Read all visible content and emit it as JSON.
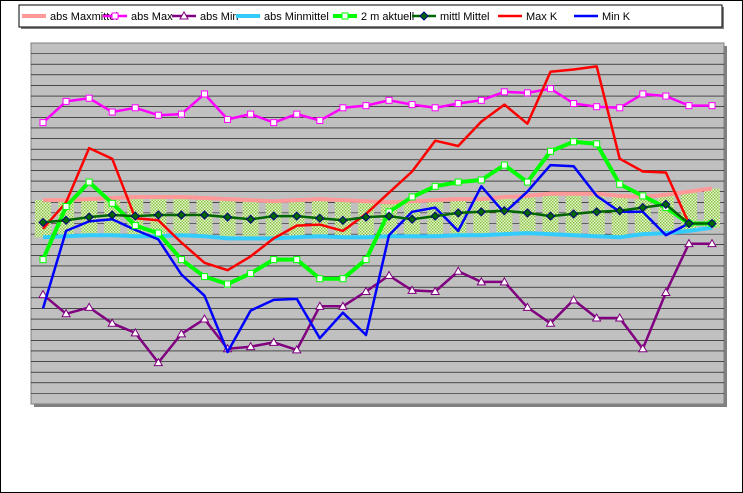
{
  "chart_data": {
    "type": "line",
    "title": "",
    "xlabel": "",
    "ylabel": "",
    "grid": true,
    "legend_position": "top",
    "plot_background": "#c0c0c0",
    "x": [
      1,
      2,
      3,
      4,
      5,
      6,
      7,
      8,
      9,
      10,
      11,
      12,
      13,
      14,
      15,
      16,
      17,
      18,
      19,
      20,
      21,
      22,
      23,
      24,
      25,
      26,
      27,
      28,
      29,
      30
    ],
    "ylim": [
      0,
      34
    ],
    "series": [
      {
        "name": "abs Maxmittel",
        "color": "#ff9999",
        "style": "thick",
        "values": [
          19.2,
          19.2,
          19.3,
          19.4,
          19.5,
          19.5,
          19.5,
          19.4,
          19.3,
          19.2,
          19.1,
          19.2,
          19.3,
          19.2,
          19.1,
          19.0,
          19.1,
          19.2,
          19.3,
          19.3,
          19.5,
          19.6,
          19.8,
          19.8,
          19.8,
          19.6,
          19.5,
          19.7,
          20.0,
          20.3
        ]
      },
      {
        "name": "abs Max",
        "color": "#ff00ff",
        "marker": "square",
        "values": [
          26.5,
          28.5,
          28.8,
          27.5,
          27.9,
          27.2,
          27.3,
          29.2,
          26.8,
          27.3,
          26.5,
          27.3,
          26.7,
          27.9,
          28.1,
          28.6,
          28.2,
          27.9,
          28.3,
          28.6,
          29.4,
          29.3,
          29.7,
          28.3,
          28.0,
          27.9,
          29.2,
          29.0,
          28.1,
          28.1
        ]
      },
      {
        "name": "abs Min",
        "color": "#800080",
        "marker": "triangle",
        "values": [
          10.3,
          8.5,
          9.1,
          7.6,
          6.7,
          3.9,
          6.6,
          8.0,
          5.2,
          5.4,
          5.8,
          5.1,
          9.2,
          9.2,
          10.6,
          12.1,
          10.7,
          10.6,
          12.5,
          11.5,
          11.5,
          9.1,
          7.6,
          9.8,
          8.1,
          8.1,
          5.2,
          10.5,
          15.1,
          15.1
        ]
      },
      {
        "name": "abs Minmittel",
        "color": "#33ccff",
        "style": "thick",
        "values": [
          15.7,
          15.8,
          15.9,
          15.9,
          15.8,
          15.8,
          15.9,
          15.8,
          15.6,
          15.6,
          15.6,
          15.7,
          15.8,
          15.7,
          15.7,
          15.8,
          15.8,
          15.8,
          15.9,
          15.9,
          16.0,
          16.1,
          16.0,
          15.9,
          15.8,
          15.7,
          16.0,
          16.1,
          16.3,
          16.6
        ]
      },
      {
        "name": "2 m aktuell",
        "color": "#00ff00",
        "marker": "square",
        "style": "thick",
        "values": [
          13.6,
          18.6,
          20.9,
          18.9,
          16.8,
          16.1,
          13.6,
          12.0,
          11.3,
          12.3,
          13.6,
          13.6,
          11.8,
          11.8,
          13.6,
          18.1,
          19.5,
          20.5,
          20.9,
          21.1,
          22.5,
          20.9,
          23.8,
          24.7,
          24.5,
          20.7,
          19.6,
          18.5,
          17.0,
          17.0
        ]
      },
      {
        "name": "mittl Mittel",
        "color": "#006600",
        "marker": "diamond",
        "values": [
          17.1,
          17.3,
          17.6,
          17.8,
          17.7,
          17.8,
          17.8,
          17.8,
          17.6,
          17.4,
          17.7,
          17.7,
          17.5,
          17.3,
          17.6,
          17.7,
          17.4,
          17.7,
          18.0,
          18.1,
          18.2,
          18.0,
          17.7,
          17.9,
          18.1,
          18.2,
          18.5,
          18.8,
          17.0,
          17.0
        ]
      },
      {
        "name": "Max K",
        "color": "#ff0000",
        "style": "line",
        "values": [
          16.5,
          19.0,
          24.1,
          23.1,
          17.5,
          17.3,
          15.2,
          13.3,
          12.6,
          13.9,
          15.6,
          16.8,
          16.9,
          16.3,
          17.9,
          19.9,
          21.9,
          24.8,
          24.3,
          26.6,
          28.2,
          26.4,
          31.3,
          31.5,
          31.8,
          23.1,
          21.9,
          21.8,
          17.0,
          17.0
        ]
      },
      {
        "name": "Min K",
        "color": "#0000ff",
        "style": "line",
        "values": [
          9.0,
          16.3,
          17.2,
          17.4,
          16.4,
          15.5,
          12.2,
          10.2,
          4.9,
          8.8,
          9.8,
          9.9,
          6.2,
          8.6,
          6.5,
          15.9,
          18.1,
          18.5,
          16.3,
          20.5,
          18.0,
          20.0,
          22.5,
          22.4,
          19.6,
          18.1,
          18.1,
          15.9,
          17.0,
          17.0
        ]
      }
    ]
  }
}
